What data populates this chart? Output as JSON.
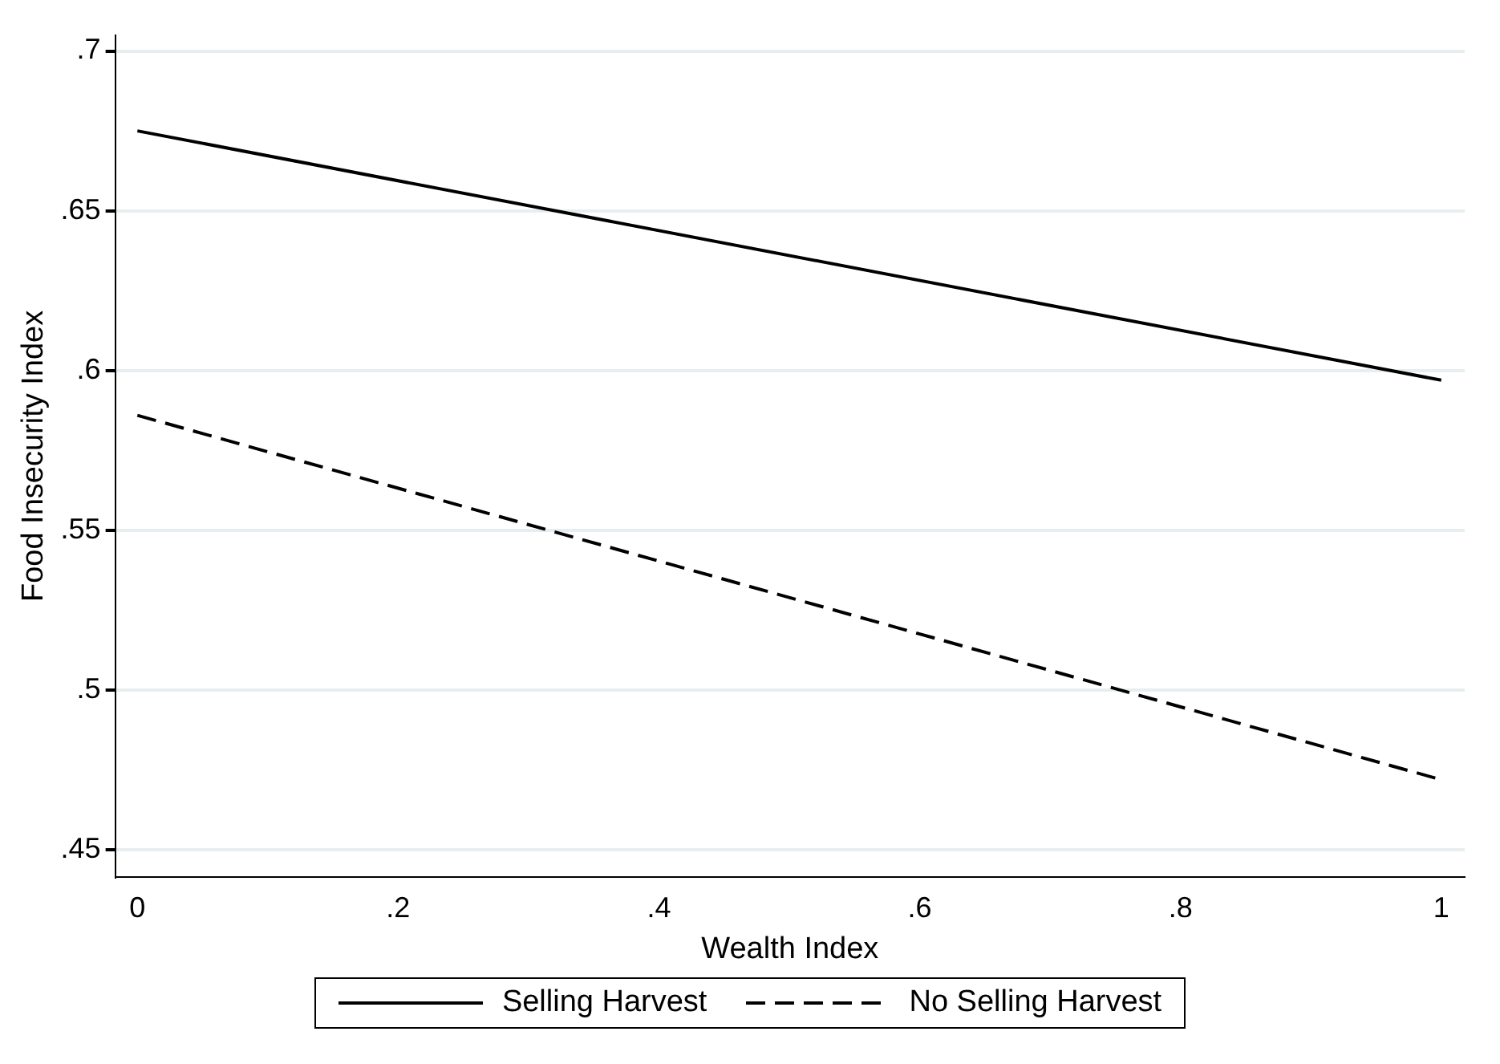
{
  "chart_data": {
    "type": "line",
    "xlabel": "Wealth Index",
    "ylabel": "Food Insecurity Index",
    "x": [
      0,
      1
    ],
    "series": [
      {
        "name": "Selling Harvest",
        "color": "#000000",
        "line_style": "solid",
        "values": [
          0.675,
          0.597
        ]
      },
      {
        "name": "No Selling Harvest",
        "color": "#000000",
        "line_style": "dashed",
        "values": [
          0.586,
          0.472
        ]
      }
    ],
    "xlim": [
      -0.017,
      1.018
    ],
    "xticks": [
      0,
      {
        "value": 0.2,
        "label": ".2"
      },
      {
        "value": 0.4,
        "label": ".4"
      },
      {
        "value": 0.6,
        "label": ".6"
      },
      {
        "value": 0.8,
        "label": ".8"
      },
      1
    ],
    "ylim": [
      0.4415,
      0.705
    ],
    "yticks": [
      {
        "value": 0.45,
        "label": ".45"
      },
      {
        "value": 0.5,
        "label": ".5"
      },
      {
        "value": 0.55,
        "label": ".55"
      },
      {
        "value": 0.6,
        "label": ".6"
      },
      {
        "value": 0.65,
        "label": ".65"
      },
      {
        "value": 0.7,
        "label": ".7"
      }
    ],
    "grid": "y",
    "legend": "bottom",
    "marker": "none"
  }
}
